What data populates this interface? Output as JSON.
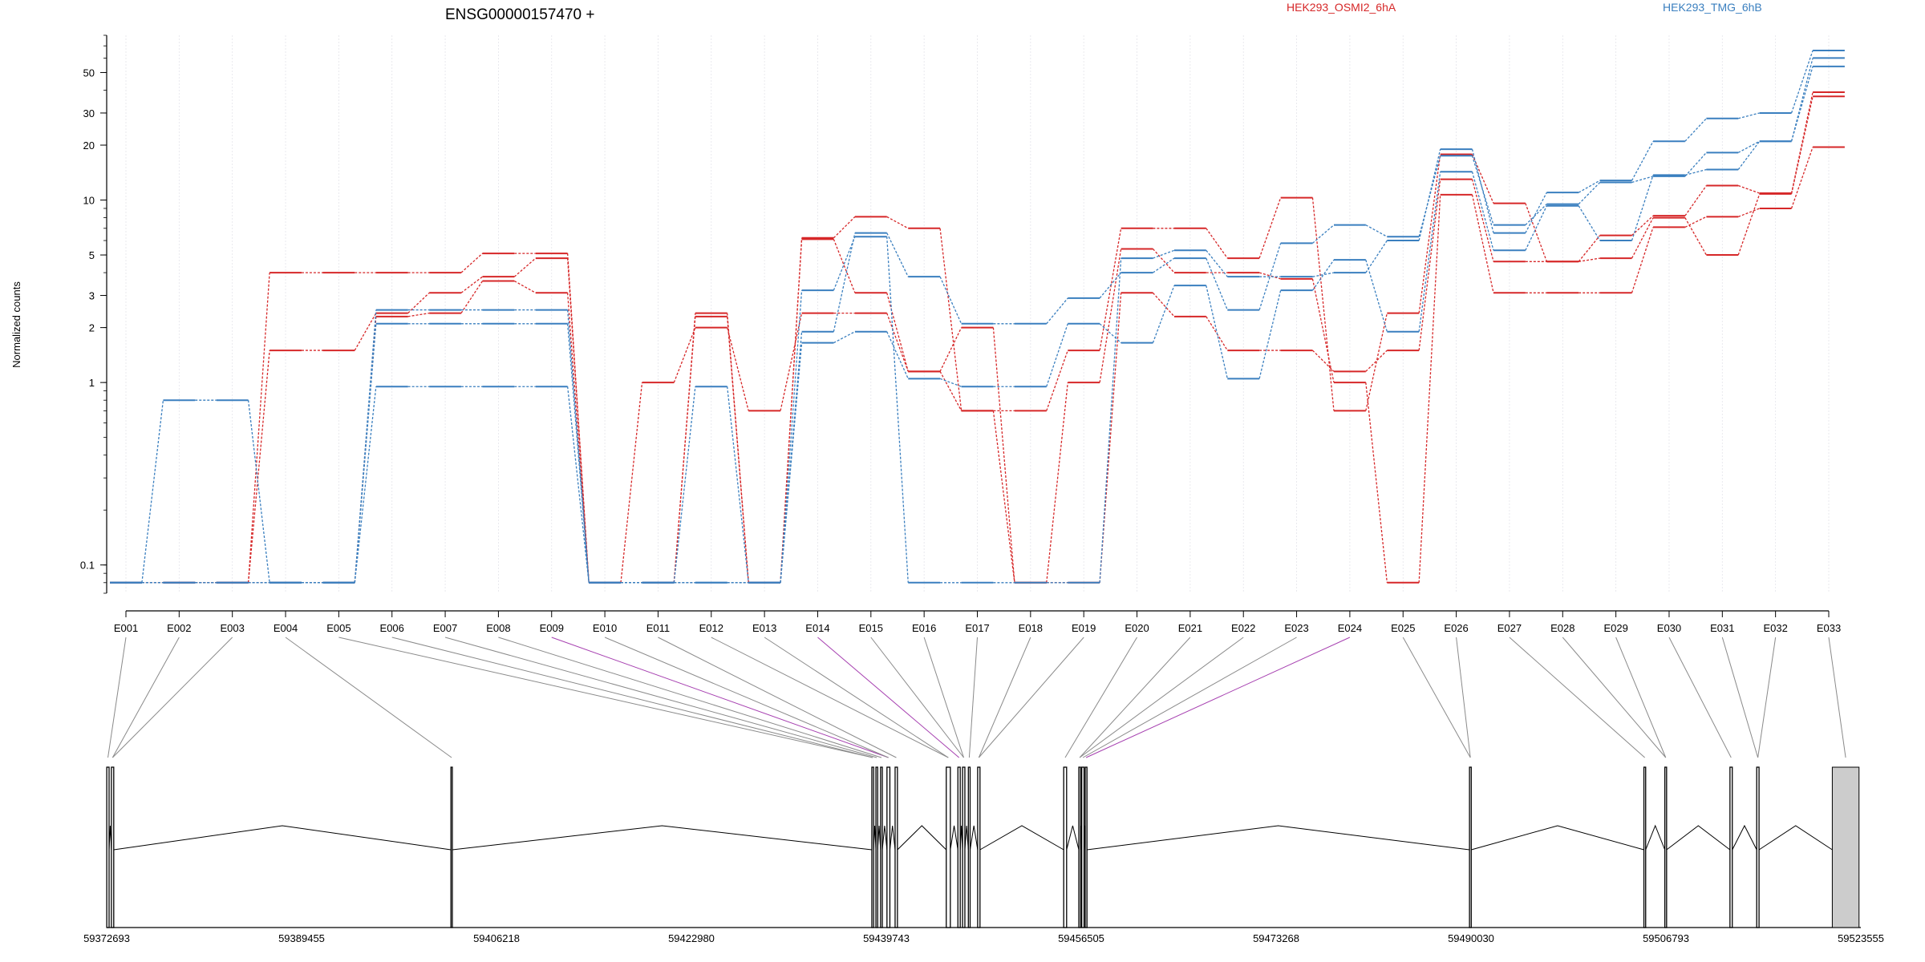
{
  "chart_data": {
    "type": "line",
    "title": "ENSG00000157470 +",
    "ylabel": "Normalized counts",
    "yscale": "log",
    "ylim": [
      0.07,
      80
    ],
    "yticks": [
      0.1,
      1,
      2,
      3,
      5,
      10,
      20,
      30,
      50
    ],
    "ytick_labels": [
      "0.1",
      "1",
      "2",
      "3",
      "5",
      "10",
      "20",
      "30",
      "50"
    ],
    "categories": [
      "E001",
      "E002",
      "E003",
      "E004",
      "E005",
      "E006",
      "E007",
      "E008",
      "E009",
      "E010",
      "E011",
      "E012",
      "E013",
      "E014",
      "E015",
      "E016",
      "E017",
      "E018",
      "E019",
      "E020",
      "E021",
      "E022",
      "E023",
      "E024",
      "E025",
      "E026",
      "E027",
      "E028",
      "E029",
      "E030",
      "E031",
      "E032",
      "E033"
    ],
    "legend": [
      {
        "name": "HEK293_OSMI2_6hA",
        "color": "#d62728"
      },
      {
        "name": "HEK293_TMG_6hB",
        "color": "#3a7fbf"
      }
    ],
    "series": [
      {
        "group": "HEK293_OSMI2_6hA",
        "color": "#d62728",
        "values": [
          0.08,
          0.08,
          0.08,
          4.0,
          4.0,
          4.0,
          4.0,
          5.1,
          5.1,
          0.08,
          0.08,
          2.4,
          0.08,
          6.2,
          8.1,
          7.0,
          0.7,
          0.7,
          1.5,
          7.0,
          7.0,
          4.8,
          10.3,
          0.7,
          2.4,
          17.8,
          9.6,
          4.6,
          6.4,
          8.2,
          12.0,
          10.9,
          39.0
        ]
      },
      {
        "group": "HEK293_OSMI2_6hA",
        "color": "#d62728",
        "values": [
          0.08,
          0.08,
          0.08,
          1.5,
          1.5,
          2.4,
          3.1,
          3.8,
          4.8,
          0.08,
          1.0,
          2.0,
          0.7,
          2.4,
          2.4,
          1.15,
          0.7,
          0.08,
          0.08,
          3.1,
          2.3,
          1.5,
          1.5,
          1.15,
          1.5,
          13.0,
          4.6,
          4.6,
          4.8,
          8.0,
          5.0,
          10.8,
          37.0
        ]
      },
      {
        "group": "HEK293_OSMI2_6hA",
        "color": "#d62728",
        "values": [
          0.08,
          0.08,
          0.08,
          0.08,
          0.08,
          2.3,
          2.4,
          3.6,
          3.1,
          0.08,
          0.08,
          2.3,
          0.08,
          6.1,
          3.1,
          1.15,
          2.0,
          0.08,
          1.0,
          5.4,
          4.0,
          4.0,
          3.7,
          1.0,
          0.08,
          10.7,
          3.1,
          3.1,
          3.1,
          7.1,
          8.1,
          9.0,
          19.5
        ]
      },
      {
        "group": "HEK293_TMG_6hB",
        "color": "#3a7fbf",
        "values": [
          0.08,
          0.8,
          0.8,
          0.08,
          0.08,
          2.5,
          2.5,
          2.5,
          2.5,
          0.08,
          0.08,
          0.08,
          0.08,
          3.2,
          6.3,
          0.08,
          0.08,
          0.08,
          0.08,
          4.8,
          5.3,
          3.8,
          3.8,
          4.0,
          6.0,
          19.0,
          6.6,
          11.0,
          12.8,
          21.0,
          28.0,
          30.0,
          66.0
        ]
      },
      {
        "group": "HEK293_TMG_6hB",
        "color": "#3a7fbf",
        "values": [
          0.08,
          0.08,
          0.08,
          0.08,
          0.08,
          2.1,
          2.1,
          2.1,
          2.1,
          0.08,
          0.08,
          0.95,
          0.08,
          1.9,
          6.6,
          3.8,
          2.1,
          2.1,
          2.9,
          4.0,
          4.8,
          2.5,
          5.8,
          7.3,
          6.3,
          17.5,
          7.3,
          9.5,
          12.5,
          13.5,
          18.2,
          21.0,
          60.0
        ]
      },
      {
        "group": "HEK293_TMG_6hB",
        "color": "#3a7fbf",
        "values": [
          0.08,
          0.08,
          0.08,
          0.08,
          0.08,
          0.95,
          0.95,
          0.95,
          0.95,
          0.08,
          0.08,
          0.08,
          0.08,
          1.65,
          1.9,
          1.05,
          0.95,
          0.95,
          2.1,
          1.65,
          3.4,
          1.05,
          3.2,
          4.7,
          1.9,
          14.3,
          5.3,
          9.3,
          6.0,
          13.7,
          14.7,
          21.0,
          54.0
        ]
      }
    ],
    "exon_links_highlighted": [
      "E009",
      "E014",
      "E024"
    ],
    "gene_model": {
      "coordinate_labels": [
        "59372693",
        "59389455",
        "59406218",
        "59422980",
        "59439743",
        "59456505",
        "59473268",
        "59490030",
        "59506793",
        "59523555"
      ],
      "exons": [
        {
          "start": 59372700,
          "end": 59372900
        },
        {
          "start": 59373100,
          "end": 59373300
        },
        {
          "start": 59402300,
          "end": 59402420
        },
        {
          "start": 59438500,
          "end": 59438650
        },
        {
          "start": 59438850,
          "end": 59439000
        },
        {
          "start": 59439250,
          "end": 59439400
        },
        {
          "start": 59439800,
          "end": 59440050
        },
        {
          "start": 59440500,
          "end": 59440700
        },
        {
          "start": 59444900,
          "end": 59445250
        },
        {
          "start": 59445900,
          "end": 59446100
        },
        {
          "start": 59446300,
          "end": 59446500
        },
        {
          "start": 59446800,
          "end": 59446950
        },
        {
          "start": 59447600,
          "end": 59447800
        },
        {
          "start": 59455000,
          "end": 59455250
        },
        {
          "start": 59456300,
          "end": 59456450
        },
        {
          "start": 59456550,
          "end": 59456750
        },
        {
          "start": 59456850,
          "end": 59457000
        },
        {
          "start": 59489900,
          "end": 59490050
        },
        {
          "start": 59504900,
          "end": 59505050
        },
        {
          "start": 59506700,
          "end": 59506850
        },
        {
          "start": 59512300,
          "end": 59512500
        },
        {
          "start": 59514600,
          "end": 59514800
        },
        {
          "start": 59521100,
          "end": 59523400
        }
      ]
    }
  }
}
